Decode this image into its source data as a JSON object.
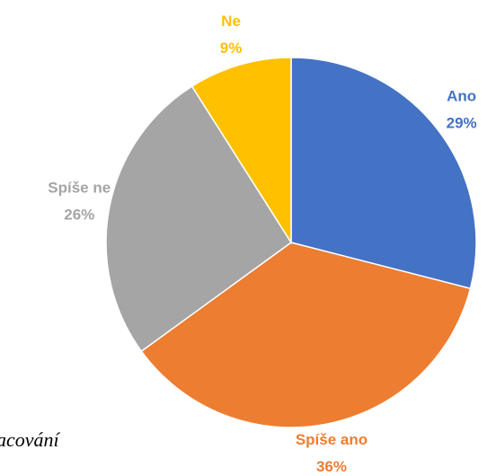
{
  "chart_data": {
    "type": "pie",
    "categories": [
      "Ano",
      "Spíše ano",
      "Spíše ne",
      "Ne"
    ],
    "values": [
      29,
      36,
      26,
      9
    ],
    "value_labels": [
      "29%",
      "36%",
      "26%",
      "9%"
    ],
    "colors": [
      "#4472c4",
      "#ed7d31",
      "#a5a5a5",
      "#ffc000"
    ],
    "label_colors": [
      "#4472c4",
      "#ed7d31",
      "#a5a5a5",
      "#ffc000"
    ],
    "caption": "acování"
  }
}
